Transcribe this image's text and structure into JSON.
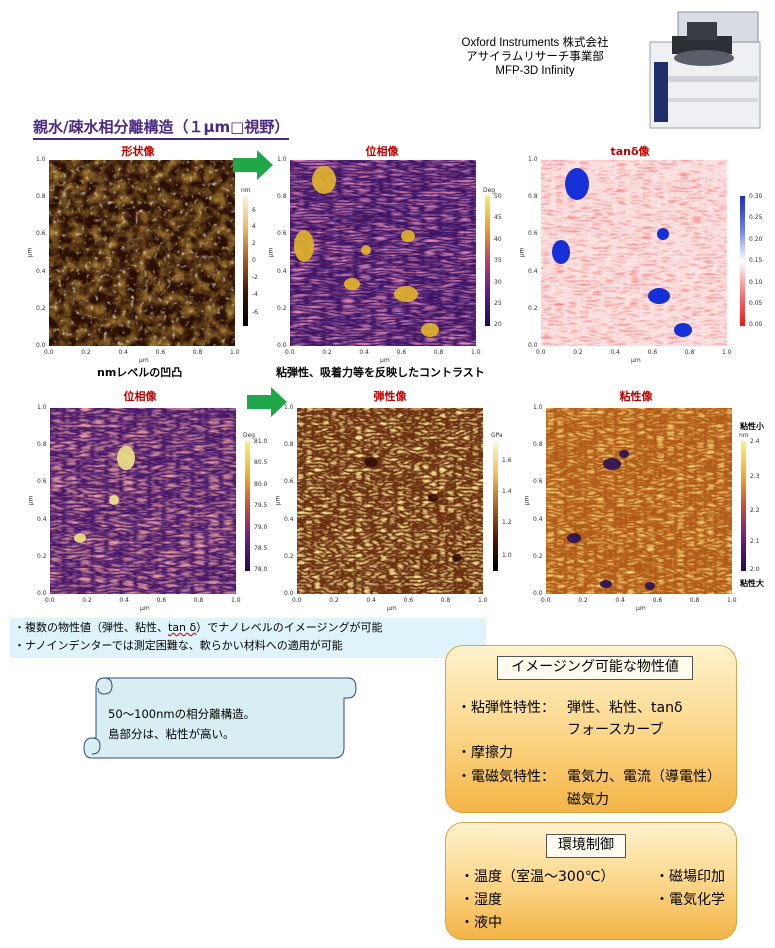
{
  "header": {
    "company_line1": "Oxford Instruments 株式会社",
    "company_line2": "アサイラムリサーチ事業部",
    "company_line3": "MFP-3D Infinity"
  },
  "title": "親水/疎水相分離構造（１μm□視野）",
  "panels": {
    "topography": {
      "title": "形状像",
      "unit": "nm",
      "cbar_ticks": [
        "6",
        "4",
        "2",
        "0",
        "-2",
        "-4",
        "-6"
      ]
    },
    "phase_top": {
      "title": "位相像",
      "unit": "Deg",
      "cbar_ticks": [
        "50",
        "45",
        "40",
        "35",
        "30",
        "25",
        "20"
      ]
    },
    "tandelta": {
      "title": "tanδ像",
      "cbar_ticks": [
        "0.30",
        "0.25",
        "0.20",
        "0.15",
        "0.10",
        "0.05",
        "0.00"
      ]
    },
    "phase_bottom": {
      "title": "位相像",
      "unit": "Deg",
      "cbar_ticks": [
        "81.0",
        "80.5",
        "80.0",
        "79.5",
        "79.0",
        "78.5",
        "78.0"
      ]
    },
    "elasticity": {
      "title": "弾性像",
      "unit": "GPa",
      "cbar_ticks": [
        "1.6",
        "1.4",
        "1.2",
        "1.0"
      ]
    },
    "viscosity": {
      "title": "粘性像",
      "unit": "nm",
      "cbar_ticks": [
        "2.4",
        "2.3",
        "2.2",
        "2.1",
        "2.0"
      ],
      "label_top": "粘性小",
      "label_bottom": "粘性大"
    }
  },
  "axis": {
    "ticks": [
      "0.0",
      "0.2",
      "0.4",
      "0.6",
      "0.8",
      "1.0"
    ],
    "unit": "μm"
  },
  "captions": {
    "topography": "nmレベルの凹凸",
    "contrast": "粘弾性、吸着力等を反映したコントラスト"
  },
  "bullets": {
    "line1_pre": "・複数の物性値（弾性、粘性、",
    "line1_tan": "tan δ",
    "line1_post": "）でナノレベルのイメージングが可能",
    "line2": "・ナノインデンターでは測定困難な、軟らかい材料への適用が可能"
  },
  "scroll": {
    "line1": "50～100nmの相分離構造。",
    "line2": "島部分は、粘性が高い。"
  },
  "properties_box": {
    "heading": "イメージング可能な物性値",
    "row1_label": "・粘弾性特性：",
    "row1_value1": "弾性、粘性、tanδ",
    "row1_value2": "フォースカーブ",
    "row2": "・摩擦力",
    "row3_label": "・電磁気特性：",
    "row3_value1": "電気力、電流（導電性）",
    "row3_value2": "磁気力"
  },
  "environment_box": {
    "heading": "環境制御",
    "left": [
      "・温度（室温～300℃）",
      "・湿度",
      "・液中"
    ],
    "right": [
      "・磁場印加",
      "・電気化学"
    ]
  },
  "colors": {
    "title_purple": "#4b2a82",
    "panel_title_red": "#c00000",
    "arrow_green": "#22a64a",
    "bullet_bg": "#dff4fa",
    "orange": "#fbd585"
  }
}
